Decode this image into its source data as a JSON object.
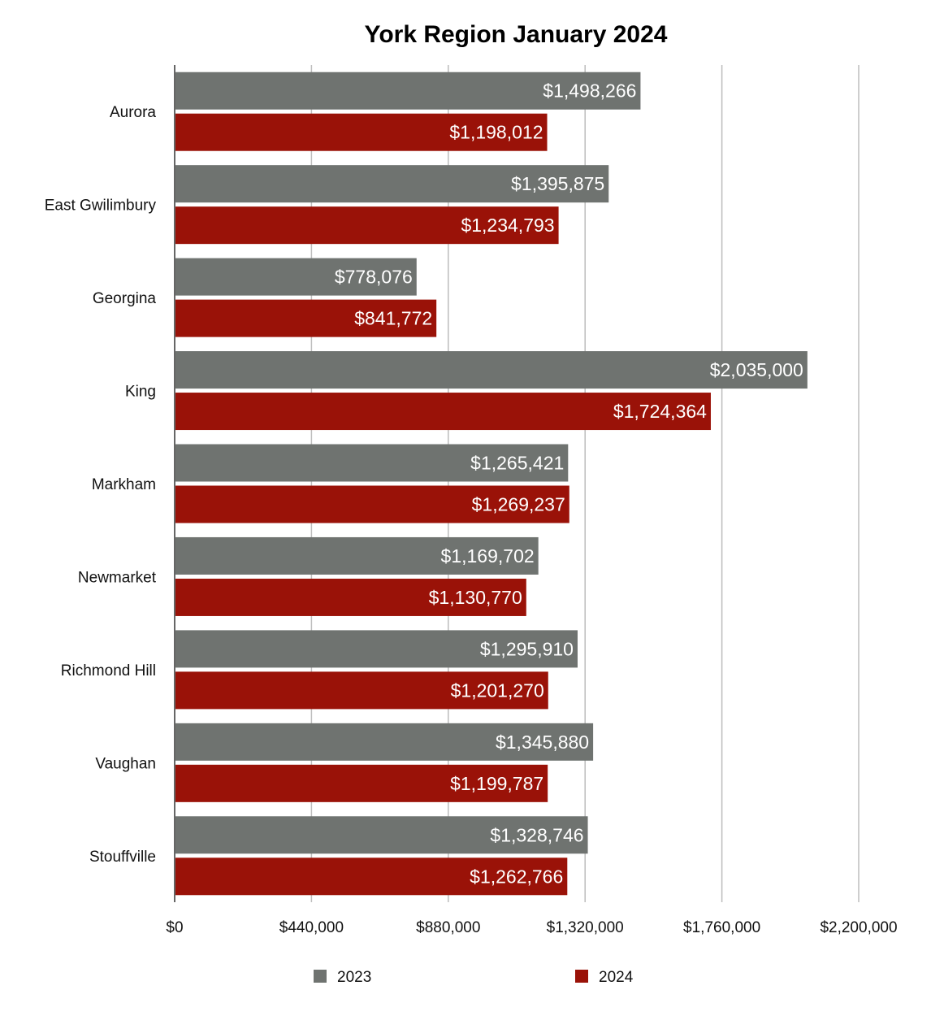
{
  "chart_data": {
    "type": "bar",
    "orientation": "horizontal",
    "title": "York Region January 2024",
    "categories": [
      "Aurora",
      "East Gwilimbury",
      "Georgina",
      "King",
      "Markham",
      "Newmarket",
      "Richmond Hill",
      "Vaughan",
      "Stouffville"
    ],
    "series": [
      {
        "name": "2023",
        "color": "#6f7370",
        "values": [
          1498266,
          1395875,
          778076,
          2035000,
          1265421,
          1169702,
          1295910,
          1345880,
          1328746
        ],
        "labels": [
          "$1,498,266",
          "$1,395,875",
          "$778,076",
          "$2,035,000",
          "$1,265,421",
          "$1,169,702",
          "$1,295,910",
          "$1,345,880",
          "$1,328,746"
        ]
      },
      {
        "name": "2024",
        "color": "#9a1208",
        "values": [
          1198012,
          1234793,
          841772,
          1724364,
          1269237,
          1130770,
          1201270,
          1199787,
          1262766
        ],
        "labels": [
          "$1,198,012",
          "$1,234,793",
          "$841,772",
          "$1,724,364",
          "$1,269,237",
          "$1,130,770",
          "$1,201,270",
          "$1,199,787",
          "$1,262,766"
        ]
      }
    ],
    "xlim": [
      0,
      2200000
    ],
    "xticks": [
      0,
      440000,
      880000,
      1320000,
      1760000,
      2200000
    ],
    "xtick_labels": [
      "$0",
      "$440,000",
      "$880,000",
      "$1,320,000",
      "$1,760,000",
      "$2,200,000"
    ],
    "xlabel": "",
    "ylabel": "",
    "grid": true,
    "legend": {
      "placement": "bottom",
      "entries": [
        "2023",
        "2024"
      ]
    }
  }
}
